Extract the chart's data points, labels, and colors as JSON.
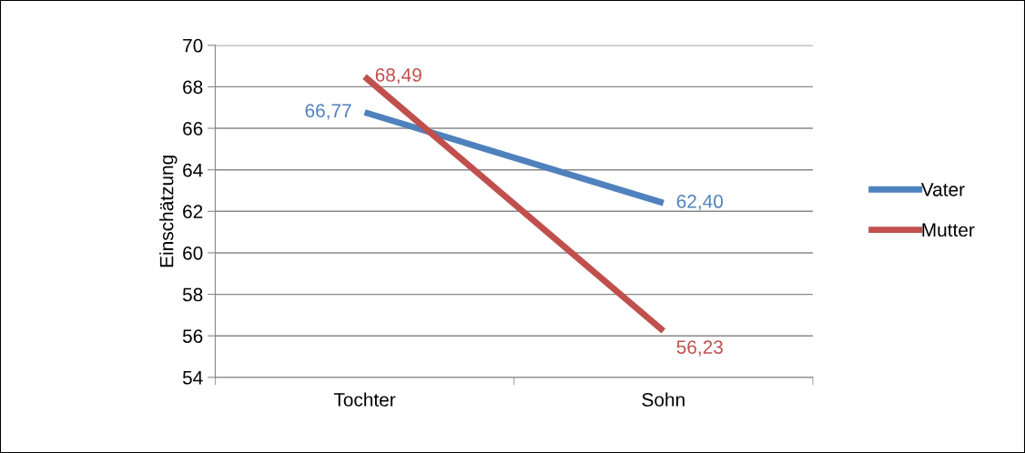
{
  "chart_data": {
    "type": "line",
    "ylabel": "Einschätzung",
    "categories": [
      "Tochter",
      "Sohn"
    ],
    "series": [
      {
        "name": "Vater",
        "color": "#4f81bd",
        "values": [
          66.77,
          62.4
        ],
        "value_labels": [
          "66,77",
          "62,40"
        ]
      },
      {
        "name": "Mutter",
        "color": "#c0504d",
        "values": [
          68.49,
          56.23
        ],
        "value_labels": [
          "68,49",
          "56,23"
        ]
      }
    ],
    "ylim": [
      54,
      70
    ],
    "yticks": [
      54,
      56,
      58,
      60,
      62,
      64,
      66,
      68,
      70
    ],
    "grid": "y",
    "legend": "right",
    "marker": "none",
    "line_style": "solid"
  }
}
